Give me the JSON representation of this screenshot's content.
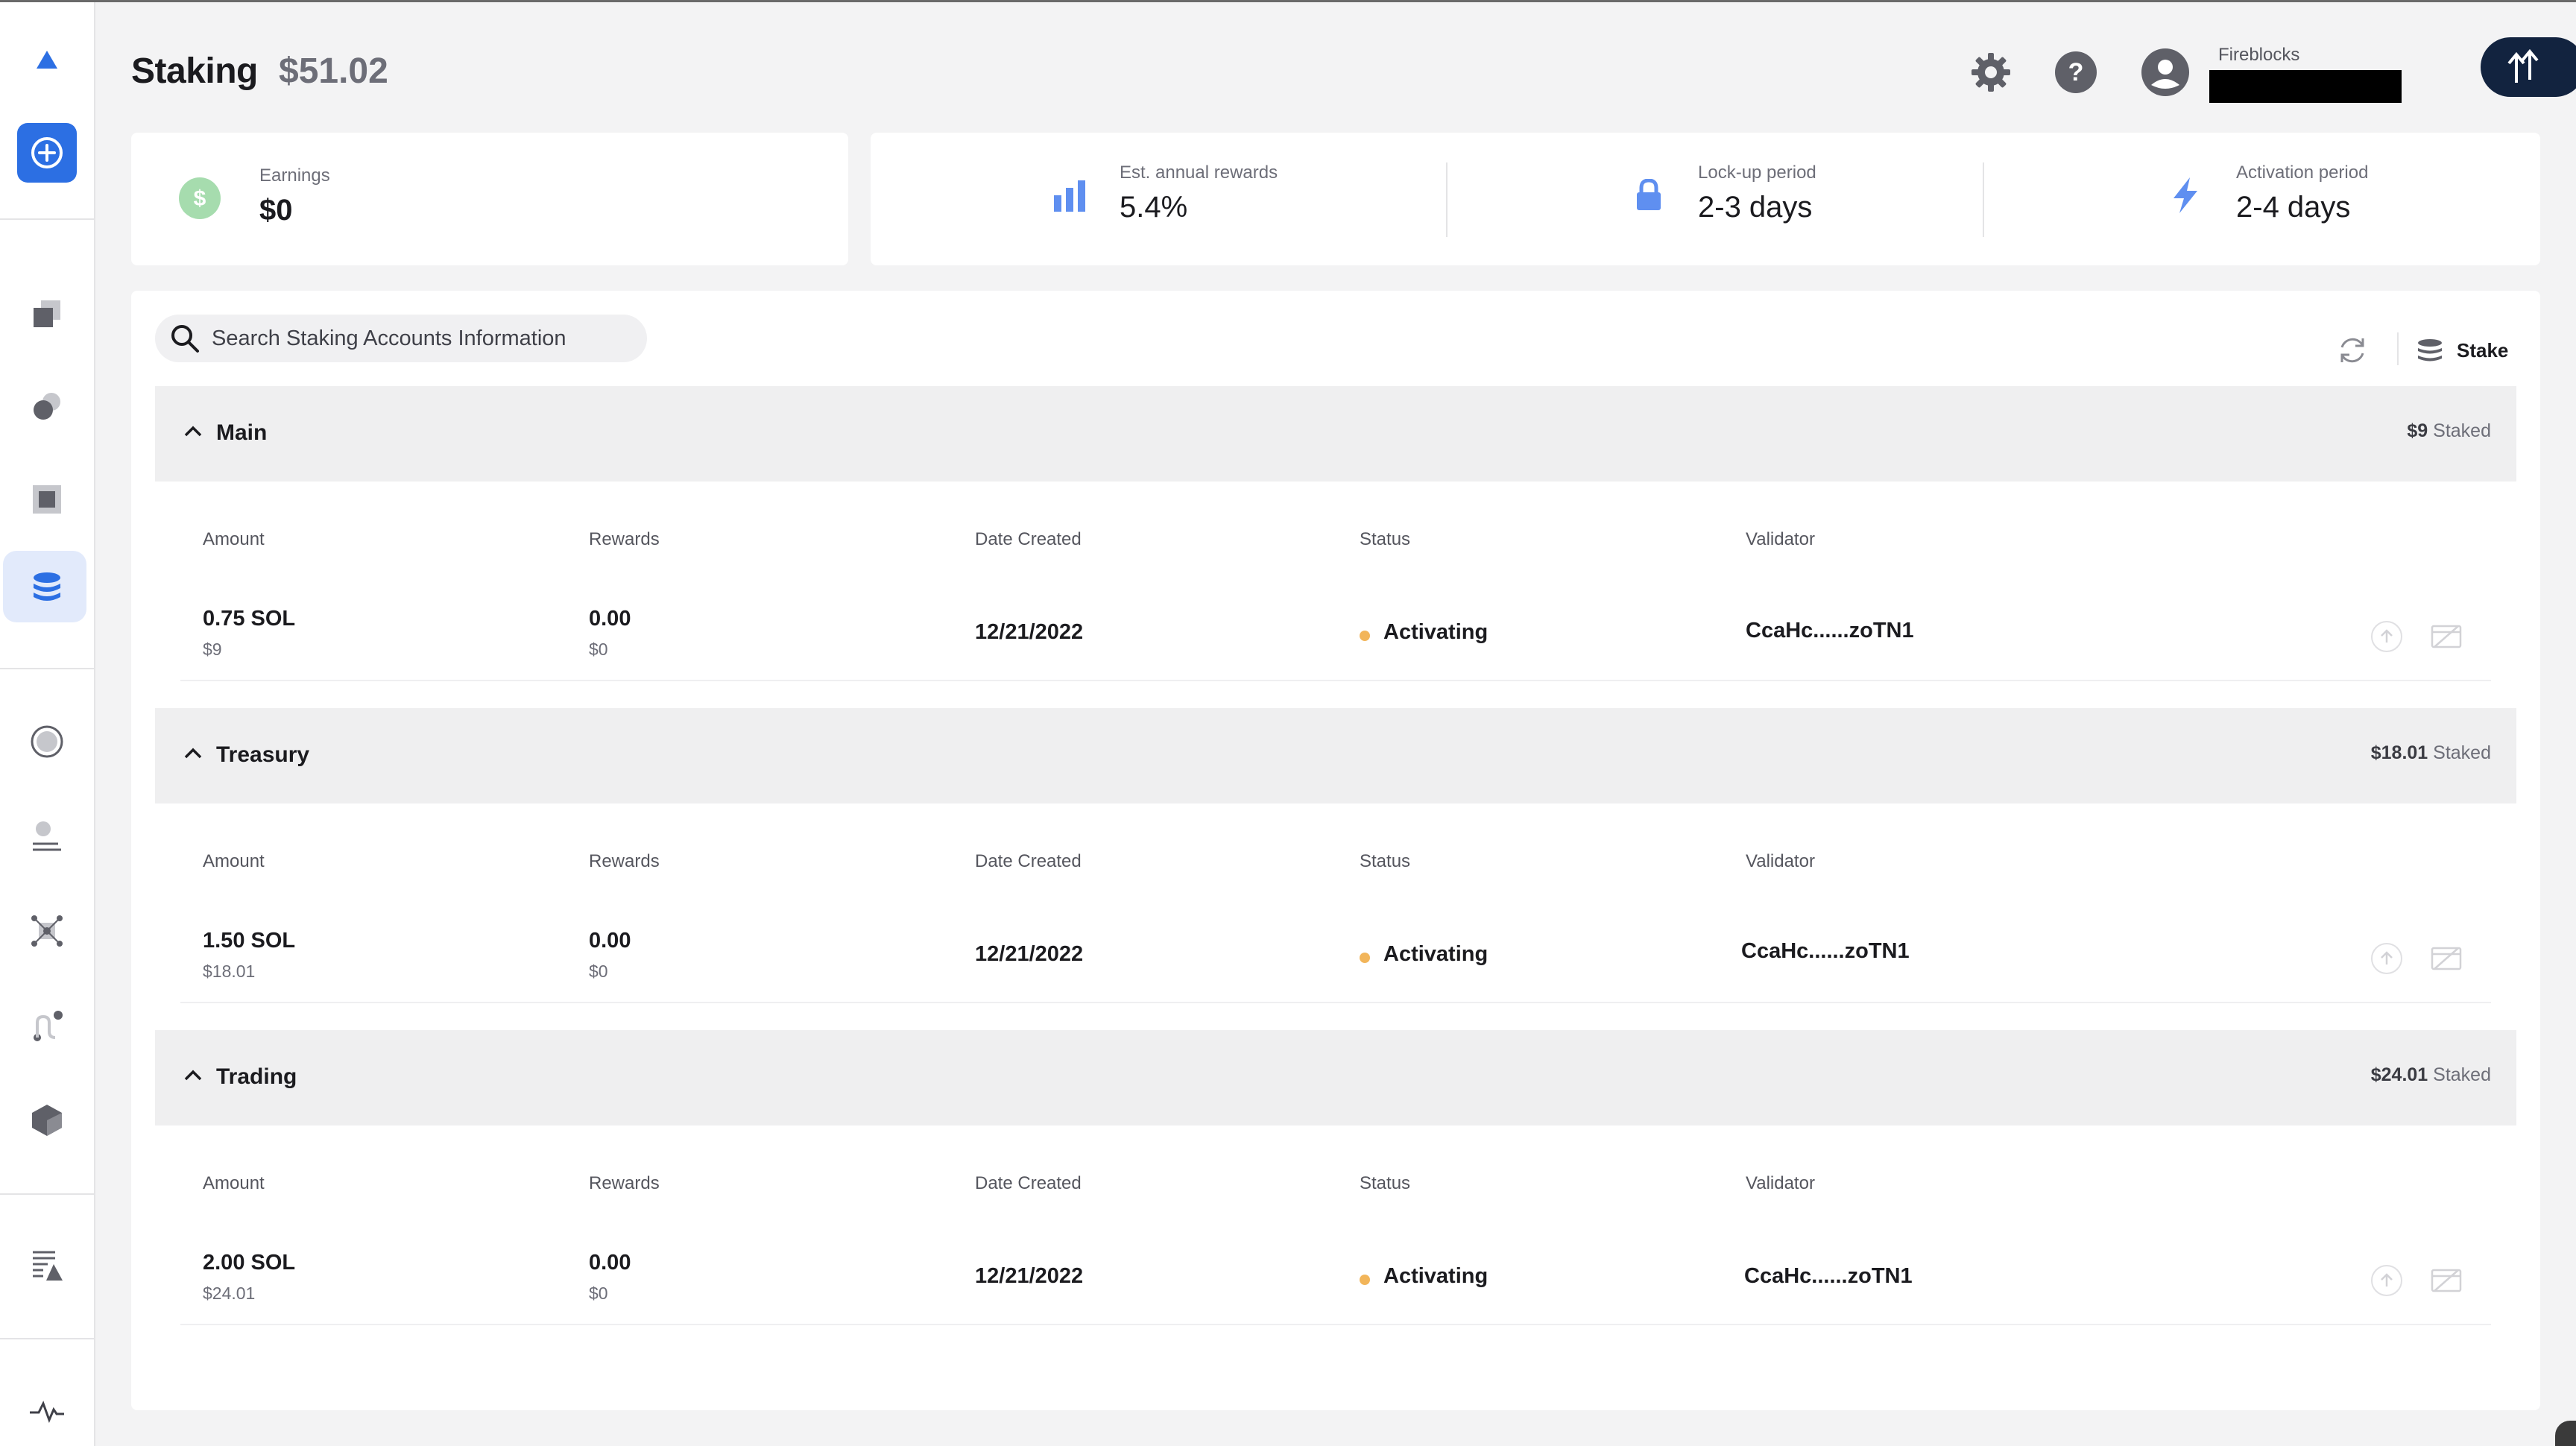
{
  "header": {
    "title": "Staking",
    "total": "$51.02",
    "workspace_label": "Fireblocks"
  },
  "icons": {
    "settings": "gear-icon",
    "help": "question-icon",
    "avatar": "user-avatar-icon",
    "transfer": "transfer-arrows-icon",
    "search": "search-icon",
    "refresh": "refresh-icon",
    "stake": "stake-stack-icon"
  },
  "summary": {
    "earnings_label": "Earnings",
    "earnings_value": "$0",
    "apr_label": "Est. annual rewards",
    "apr_value": "5.4%",
    "lockup_label": "Lock-up period",
    "lockup_value": "2-3 days",
    "activation_label": "Activation period",
    "activation_value": "2-4 days"
  },
  "toolbar": {
    "search_placeholder": "Search Staking Accounts Information",
    "stake_label": "Stake"
  },
  "columns": [
    "Amount",
    "Rewards",
    "Date Created",
    "Status",
    "Validator"
  ],
  "groups": [
    {
      "name": "Main",
      "staked_amount": "$9",
      "staked_label": "Staked",
      "rows": [
        {
          "amount": "0.75 SOL",
          "amount_usd": "$9",
          "rewards": "0.00",
          "rewards_usd": "$0",
          "date": "12/21/2022",
          "status": "Activating",
          "validator": "CcaHc......zoTN1"
        }
      ]
    },
    {
      "name": "Treasury",
      "staked_amount": "$18.01",
      "staked_label": "Staked",
      "rows": [
        {
          "amount": "1.50 SOL",
          "amount_usd": "$18.01",
          "rewards": "0.00",
          "rewards_usd": "$0",
          "date": "12/21/2022",
          "status": "Activating",
          "validator": "CcaHc......zoTN1"
        }
      ]
    },
    {
      "name": "Trading",
      "staked_amount": "$24.01",
      "staked_label": "Staked",
      "rows": [
        {
          "amount": "2.00 SOL",
          "amount_usd": "$24.01",
          "rewards": "0.00",
          "rewards_usd": "$0",
          "date": "12/21/2022",
          "status": "Activating",
          "validator": "CcaHc......zoTN1"
        }
      ]
    }
  ],
  "colors": {
    "accent": "#2c6fe3",
    "status_activating": "#f2b55a",
    "earnings_badge": "#a6dcae",
    "stat_icon": "#5f8ff0",
    "transfer_button": "#12233f"
  }
}
